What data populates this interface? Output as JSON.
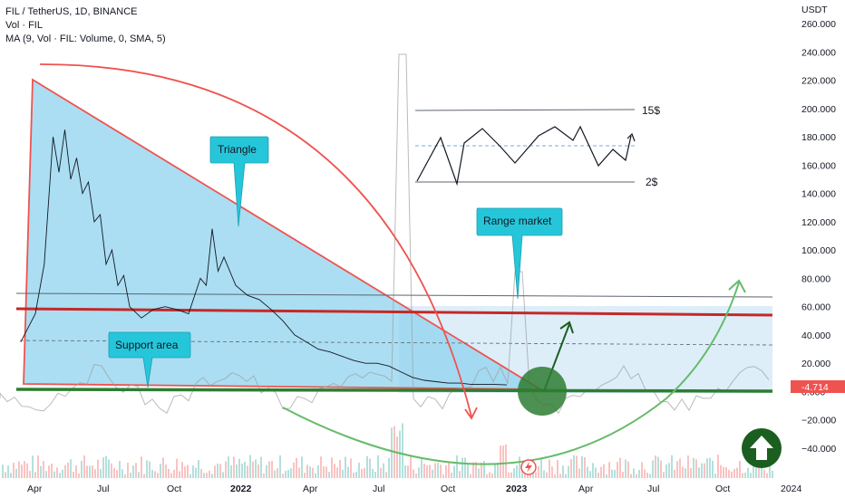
{
  "header": {
    "symbol": "FIL / TetherUS, 1D, BINANCE",
    "vol": "Vol · FIL",
    "ma": "MA (9, Vol · FIL: Volume, 0, SMA, 5)"
  },
  "chart_data": {
    "type": "line",
    "currency": "USDT",
    "yaxis_ticks": [
      "260.000",
      "240.000",
      "220.000",
      "200.000",
      "180.000",
      "160.000",
      "140.000",
      "120.000",
      "100.000",
      "80.000",
      "60.000",
      "40.000",
      "20.000",
      "0.000",
      "−20.000",
      "−40.000"
    ],
    "yaxis_values": [
      260,
      240,
      220,
      200,
      180,
      160,
      140,
      120,
      100,
      80,
      60,
      40,
      20,
      0,
      -20,
      -40
    ],
    "xaxis_ticks": [
      "Apr",
      "Jul",
      "Oct",
      "2022",
      "Apr",
      "Jul",
      "Oct",
      "2023",
      "Apr",
      "Jul",
      "Oct",
      "2024"
    ],
    "last_price": "4.714",
    "price_series": [
      [
        -0.05,
        35
      ],
      [
        0.2,
        55
      ],
      [
        0.35,
        90
      ],
      [
        0.5,
        180
      ],
      [
        0.6,
        155
      ],
      [
        0.7,
        185
      ],
      [
        0.8,
        150
      ],
      [
        0.9,
        165
      ],
      [
        1.0,
        140
      ],
      [
        1.1,
        148
      ],
      [
        1.2,
        120
      ],
      [
        1.3,
        125
      ],
      [
        1.4,
        90
      ],
      [
        1.5,
        100
      ],
      [
        1.6,
        75
      ],
      [
        1.7,
        82
      ],
      [
        1.8,
        60
      ],
      [
        2.0,
        52
      ],
      [
        2.2,
        58
      ],
      [
        2.4,
        60
      ],
      [
        2.6,
        58
      ],
      [
        2.8,
        55
      ],
      [
        3.0,
        80
      ],
      [
        3.1,
        75
      ],
      [
        3.2,
        115
      ],
      [
        3.3,
        85
      ],
      [
        3.4,
        95
      ],
      [
        3.6,
        75
      ],
      [
        3.8,
        68
      ],
      [
        4.0,
        65
      ],
      [
        4.2,
        58
      ],
      [
        4.4,
        50
      ],
      [
        4.6,
        40
      ],
      [
        4.8,
        35
      ],
      [
        5.0,
        30
      ],
      [
        5.2,
        28
      ],
      [
        5.4,
        25
      ],
      [
        5.6,
        22
      ],
      [
        5.8,
        20
      ],
      [
        6.0,
        20
      ],
      [
        6.2,
        18
      ],
      [
        6.4,
        14
      ],
      [
        6.6,
        10
      ],
      [
        6.8,
        8
      ],
      [
        7.0,
        7
      ],
      [
        7.2,
        6
      ],
      [
        7.4,
        6
      ],
      [
        7.6,
        5
      ],
      [
        7.8,
        5
      ],
      [
        8.0,
        5
      ],
      [
        8.2,
        4.7
      ]
    ],
    "annotations": {
      "triangle_label": "Triangle",
      "range_label": "Range market",
      "support_label": "Support area",
      "range_top": "15$",
      "range_bottom": "2$"
    }
  },
  "colors": {
    "red_line": "#e53935",
    "green_line": "#2e7d32",
    "triangle_fill": "#8fd3ee",
    "callout": "#26c6da",
    "price": "#131722",
    "volume": "#26a69a",
    "arc_green": "#66bb6a"
  },
  "icons": {
    "up_arrow": "arrow-up-icon",
    "lightning": "lightning-icon"
  }
}
